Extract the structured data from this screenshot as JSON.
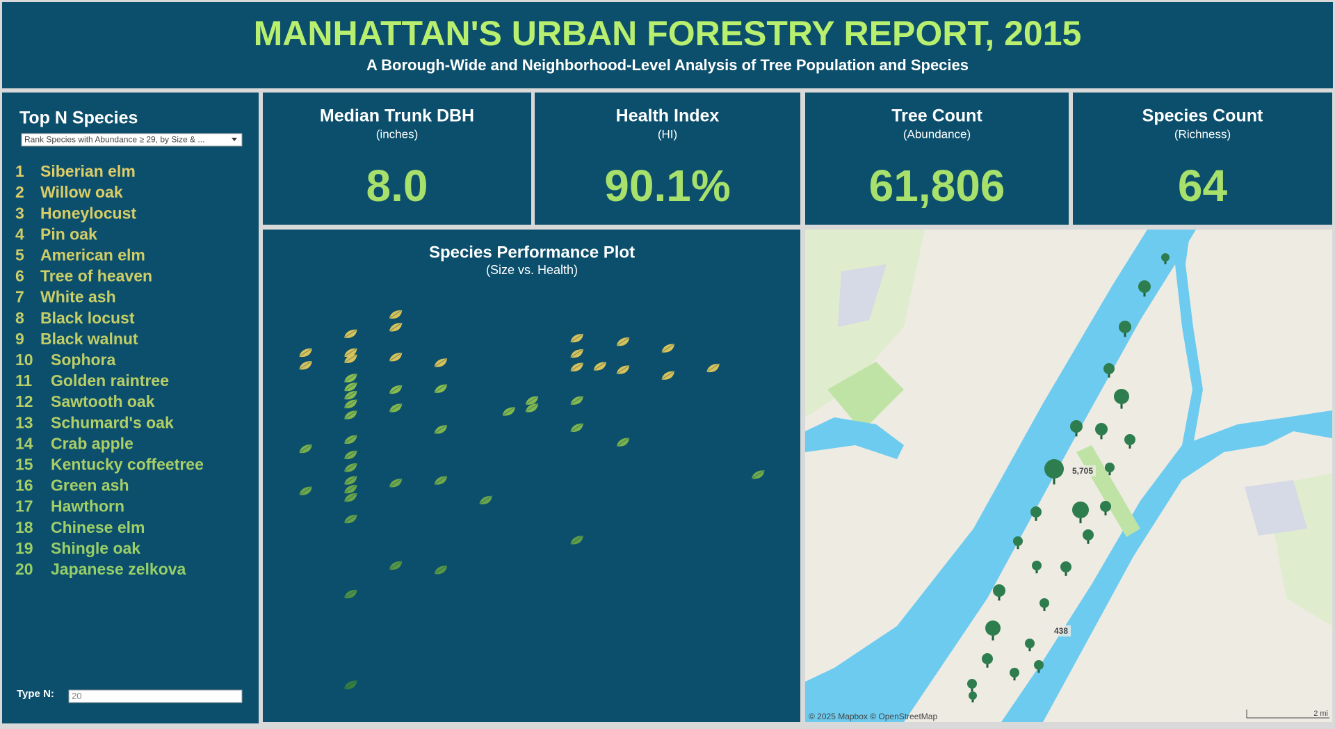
{
  "header": {
    "title": "MANHATTAN'S URBAN FORESTRY REPORT, 2015",
    "subtitle": "A Borough-Wide and Neighborhood-Level Analysis of Tree Population and Species"
  },
  "sidebar": {
    "title": "Top N Species",
    "dropdown": "Rank Species with Abundance ≥ 29, by Size & ...",
    "ranks": [
      "1",
      "2",
      "3",
      "4",
      "5",
      "6",
      "7",
      "8",
      "9",
      "10",
      "11",
      "12",
      "13",
      "14",
      "15",
      "16",
      "17",
      "18",
      "19",
      "20"
    ],
    "species": [
      "Siberian elm",
      "Willow oak",
      "Honeylocust",
      "Pin oak",
      "American elm",
      "Tree of heaven",
      "White ash",
      "Black locust",
      "Black walnut",
      "Sophora",
      "Golden raintree",
      "Sawtooth oak",
      "Schumard's oak",
      "Crab apple",
      "Kentucky coffeetree",
      "Green ash",
      "Hawthorn",
      "Chinese elm",
      "Shingle oak",
      "Japanese zelkova"
    ],
    "input_label": "Type N:",
    "input_value": "20"
  },
  "kpis": [
    {
      "title": "Median Trunk DBH",
      "subtitle": "(inches)",
      "value": "8.0"
    },
    {
      "title": "Health Index",
      "subtitle": "(HI)",
      "value": "90.1%"
    },
    {
      "title": "Tree Count",
      "subtitle": "(Abundance)",
      "value": "61,806"
    },
    {
      "title": "Species Count",
      "subtitle": "(Richness)",
      "value": "64"
    }
  ],
  "chart_data": {
    "type": "scatter",
    "title": "Species Performance Plot",
    "subtitle": "(Size vs. Health)",
    "xlim": [
      0,
      100
    ],
    "ylim": [
      0,
      100
    ],
    "x": [
      7.8,
      7.8,
      16.2,
      16.2,
      16.2,
      16.2,
      16.2,
      16.2,
      16.2,
      16.2,
      16.2,
      16.2,
      16.2,
      16.2,
      16.2,
      16.2,
      16.2,
      16.2,
      16.2,
      7.8,
      7.8,
      24.6,
      24.6,
      24.6,
      24.6,
      24.6,
      24.6,
      24.6,
      33,
      33,
      33,
      33,
      33,
      41.4,
      45.7,
      50,
      50,
      58.4,
      58.4,
      58.4,
      58.4,
      58.4,
      58.4,
      62.7,
      67,
      67,
      67,
      75.4,
      75.4,
      83.8,
      92.2
    ],
    "y": [
      83.5,
      80.6,
      87.8,
      83.5,
      82.1,
      77.7,
      75.7,
      73.8,
      71.8,
      69.3,
      63.7,
      60.2,
      57.3,
      54.4,
      52.4,
      50.5,
      45.6,
      28.5,
      7.8,
      61.6,
      52,
      92.2,
      89.3,
      82.5,
      75.1,
      70.9,
      53.8,
      35,
      81.2,
      75.3,
      66,
      54.4,
      34,
      49.9,
      70.1,
      72.6,
      70.9,
      86.8,
      83.3,
      80.2,
      72.6,
      66.4,
      40.8,
      80.4,
      86,
      79.6,
      63.1,
      84.5,
      78.3,
      80,
      55.7
    ]
  },
  "map": {
    "labels": [
      "5,705",
      "438"
    ],
    "attribution": "© 2025 Mapbox © OpenStreetMap",
    "scale": "2 mi"
  }
}
